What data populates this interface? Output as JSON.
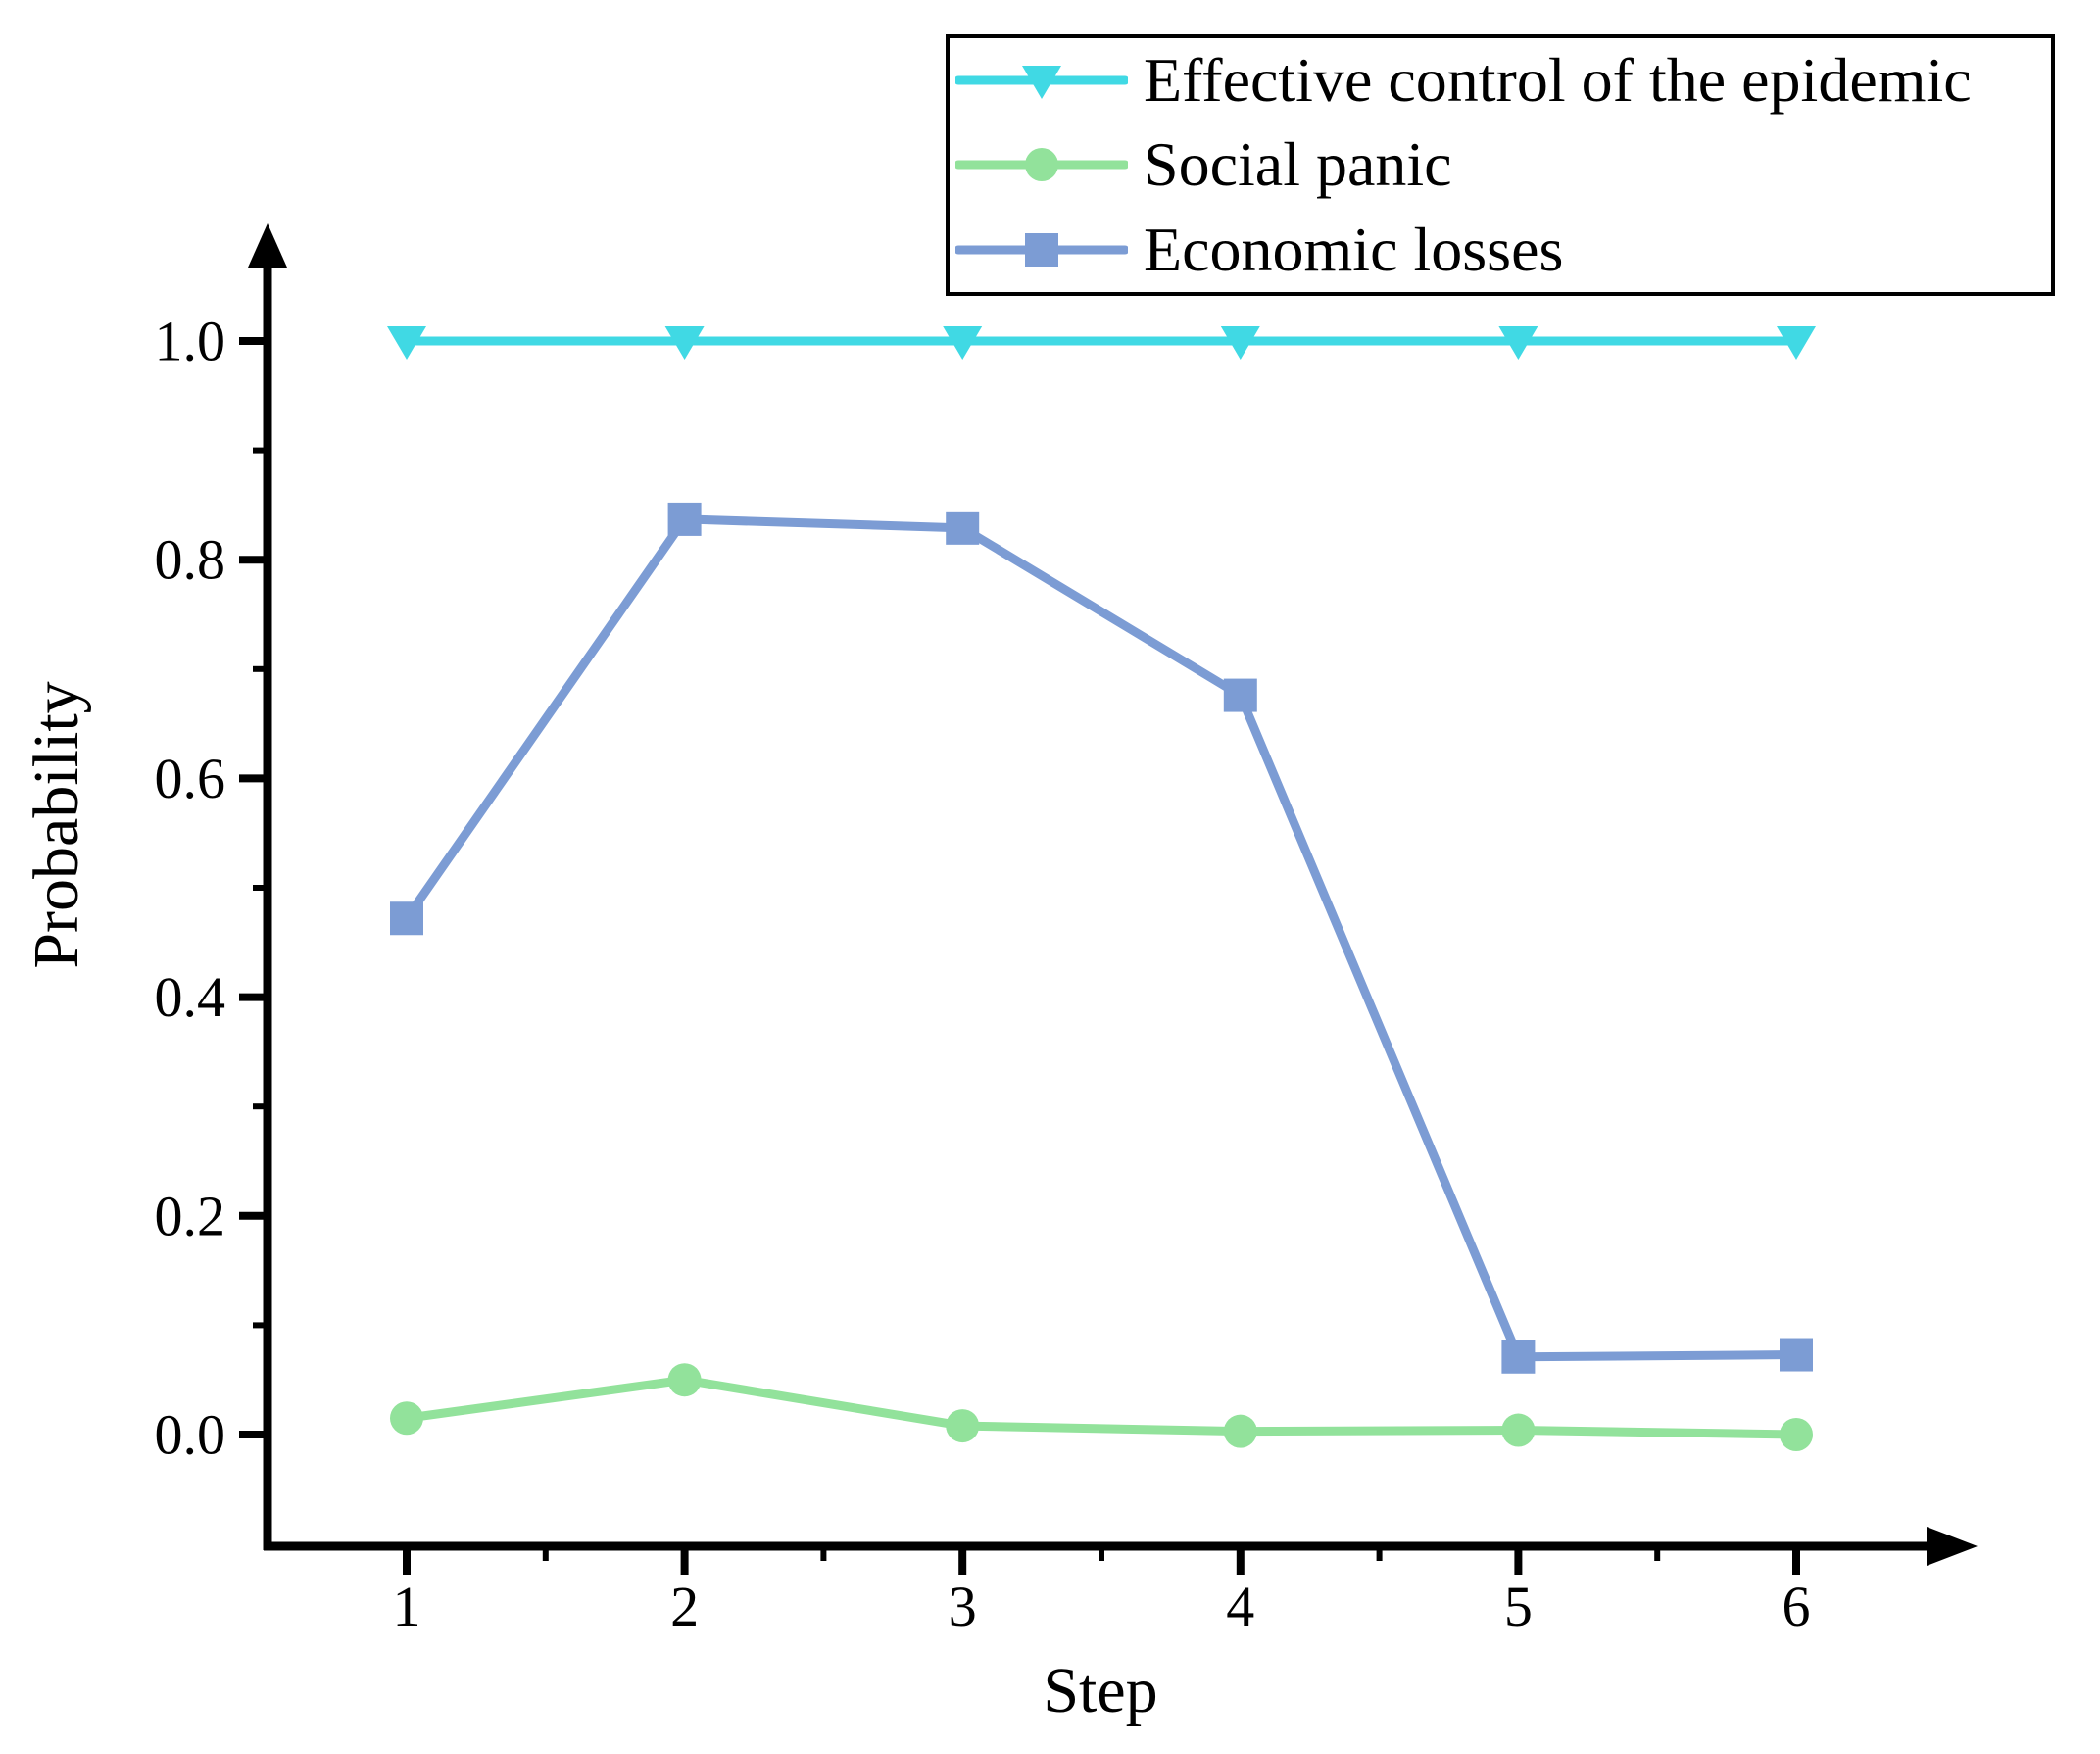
{
  "figure": {
    "xlabel": "Step",
    "ylabel": "Probability"
  },
  "chart_data": {
    "type": "line",
    "title": "",
    "xlabel": "Step",
    "ylabel": "Probability",
    "x": [
      1,
      2,
      3,
      4,
      5,
      6
    ],
    "xtick_labels": [
      "1",
      "2",
      "3",
      "4",
      "5",
      "6"
    ],
    "yticks": [
      0.0,
      0.2,
      0.4,
      0.6,
      0.8,
      1.0
    ],
    "ytick_labels": [
      "0.0",
      "0.2",
      "0.4",
      "0.6",
      "0.8",
      "1.0"
    ],
    "xlim": [
      0.5,
      6.9
    ],
    "ylim": [
      -0.1,
      1.1
    ],
    "grid": false,
    "legend_position": "top-right",
    "axis_color": "#000000",
    "series": [
      {
        "name": "Effective control of the epidemic",
        "marker": "triangle-down",
        "color": "#40D9E4",
        "values": [
          1.0,
          1.0,
          1.0,
          1.0,
          1.0,
          1.0
        ]
      },
      {
        "name": "Social panic",
        "marker": "circle",
        "color": "#92E29B",
        "values": [
          0.015,
          0.05,
          0.008,
          0.003,
          0.004,
          0.0
        ]
      },
      {
        "name": "Economic losses",
        "marker": "square",
        "color": "#7C9CD4",
        "values": [
          0.472,
          0.837,
          0.829,
          0.676,
          0.071,
          0.073
        ]
      }
    ]
  }
}
